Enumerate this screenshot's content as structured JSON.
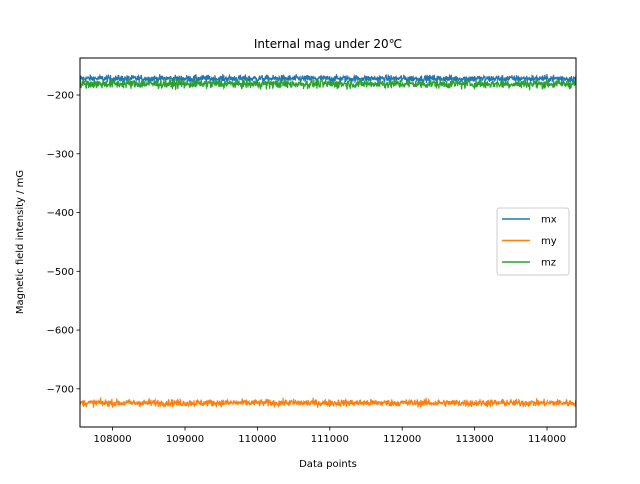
{
  "chart_data": {
    "type": "line",
    "title": "Internal mag under 20℃",
    "xlabel": "Data points",
    "ylabel": "Magnetic field intensity / mG",
    "xlim": [
      107550,
      114400
    ],
    "ylim": [
      -765,
      -137
    ],
    "x_ticks": [
      108000,
      109000,
      110000,
      111000,
      112000,
      113000,
      114000
    ],
    "y_ticks": [
      -200,
      -300,
      -400,
      -500,
      -600,
      -700
    ],
    "legend_position": "center-right",
    "grid": false,
    "series": [
      {
        "name": "mx",
        "color": "#1f77b4",
        "mean": -172,
        "noise_band": [
          -181,
          -160
        ]
      },
      {
        "name": "my",
        "color": "#ff7f0e",
        "mean": -724,
        "noise_band": [
          -735,
          -713
        ]
      },
      {
        "name": "mz",
        "color": "#2ca02c",
        "mean": -181,
        "noise_band": [
          -200,
          -172
        ]
      }
    ],
    "x_range": [
      107550,
      114400
    ]
  }
}
